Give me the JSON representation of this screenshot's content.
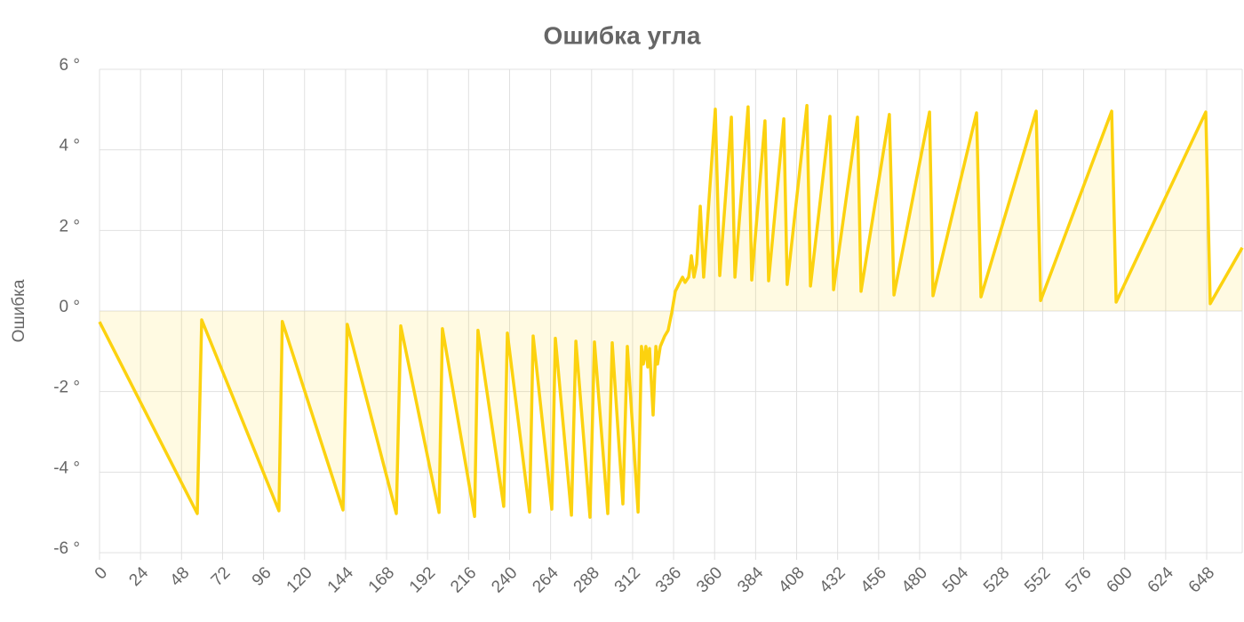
{
  "chart_data": {
    "type": "line",
    "title": "Ошибка угла",
    "y_label": "Ошибка",
    "x": [
      0,
      57.2,
      59.8,
      105,
      107,
      142.5,
      145,
      173.7,
      176.3,
      198.7,
      200.7,
      219.5,
      221.5,
      236.6,
      238.7,
      251.7,
      253.8,
      264.7,
      266.8,
      276.2,
      278.8,
      287.1,
      289.7,
      297.5,
      300.1,
      306.3,
      308.9,
      315.2,
      317.2,
      318.3,
      319.8,
      320.9,
      321.9,
      324,
      325.6,
      326.6,
      328.2,
      330.8,
      332.8,
      334.9,
      337,
      339.6,
      341.2,
      342.7,
      344.8,
      346.4,
      347.9,
      349.5,
      351.6,
      353.6,
      360.4,
      363,
      369.8,
      371.9,
      379.6,
      381.7,
      389.5,
      391.6,
      400.5,
      402.5,
      414,
      416.1,
      427.5,
      429.6,
      443.6,
      445.7,
      462.3,
      465,
      485.8,
      487.8,
      513.3,
      515.9,
      548.2,
      550.8,
      592.4,
      595,
      647.5,
      650.1,
      668.8
    ],
    "values": [
      -0.27,
      -5.03,
      -0.22,
      -4.96,
      -0.26,
      -4.94,
      -0.33,
      -5.03,
      -0.37,
      -5.0,
      -0.44,
      -5.1,
      -0.48,
      -4.85,
      -0.55,
      -4.99,
      -0.62,
      -4.92,
      -0.68,
      -5.07,
      -0.75,
      -5.12,
      -0.77,
      -5.03,
      -0.79,
      -4.79,
      -0.88,
      -4.99,
      -0.88,
      -1.32,
      -0.88,
      -1.39,
      -0.93,
      -2.58,
      -0.88,
      -1.32,
      -0.88,
      -0.62,
      -0.48,
      -0.04,
      0.49,
      0.71,
      0.84,
      0.71,
      0.84,
      1.37,
      0.84,
      1.17,
      2.6,
      0.84,
      5.01,
      0.88,
      4.81,
      0.84,
      5.07,
      0.77,
      4.72,
      0.75,
      4.77,
      0.66,
      5.1,
      0.62,
      4.83,
      0.53,
      4.81,
      0.49,
      4.88,
      0.4,
      4.94,
      0.38,
      4.92,
      0.35,
      4.96,
      0.26,
      4.96,
      0.22,
      4.94,
      0.18,
      1.57
    ],
    "color": "#fcd20f",
    "fill_color": "rgba(252,210,15,0.12)",
    "xlim": [
      0,
      668.8
    ],
    "xticks": [
      0,
      24,
      48,
      72,
      96,
      120,
      144,
      168,
      192,
      216,
      240,
      264,
      288,
      312,
      336,
      360,
      384,
      408,
      432,
      456,
      480,
      504,
      528,
      552,
      576,
      600,
      624,
      648
    ],
    "ylim": [
      -6,
      6
    ],
    "yticks": [
      {
        "value": -6,
        "label": "-6 °"
      },
      {
        "value": -4,
        "label": "-4 °"
      },
      {
        "value": -2,
        "label": "-2 °"
      },
      {
        "value": 0,
        "label": "0 °"
      },
      {
        "value": 2,
        "label": "2 °"
      },
      {
        "value": 4,
        "label": "4 °"
      },
      {
        "value": 6,
        "label": "6 °"
      }
    ],
    "grid": true
  }
}
